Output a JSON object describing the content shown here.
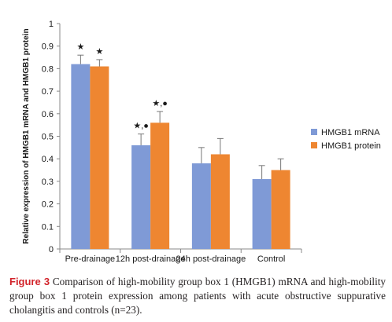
{
  "chart_data": {
    "type": "bar",
    "ylabel": "Relative expression of HMGB1 mRNA and HMGB1 protein",
    "xlabel": "",
    "ylim": [
      0,
      1
    ],
    "yticks": [
      "0",
      "0.1",
      "0.2",
      "0.3",
      "0.4",
      "0.5",
      "0.6",
      "0.7",
      "0.8",
      "0.9",
      "1"
    ],
    "categories": [
      "Pre-drainage",
      "12h post-drainage",
      "24h post-drainage",
      "Control"
    ],
    "series": [
      {
        "name": "HMGB1 mRNA",
        "color": "#7f9ad6",
        "values": [
          0.82,
          0.46,
          0.38,
          0.31
        ],
        "errors": [
          0.04,
          0.05,
          0.07,
          0.06
        ]
      },
      {
        "name": "HMGB1 protein",
        "color": "#ee8631",
        "values": [
          0.81,
          0.56,
          0.42,
          0.35
        ],
        "errors": [
          0.03,
          0.05,
          0.07,
          0.05
        ]
      }
    ],
    "annotations": [
      {
        "category": 0,
        "series": 0,
        "text": "★"
      },
      {
        "category": 0,
        "series": 1,
        "text": "★"
      },
      {
        "category": 1,
        "series": 0,
        "text": "★,●"
      },
      {
        "category": 1,
        "series": 1,
        "text": "★,●"
      }
    ],
    "legend_position": "right",
    "grid": false
  },
  "caption": {
    "label": "Figure 3",
    "text": "Comparison of high-mobility group box 1 (HMGB1) mRNA and high-mobility group box 1 protein expression among patients with acute obstructive suppurative cholangitis and controls (n=23)."
  }
}
